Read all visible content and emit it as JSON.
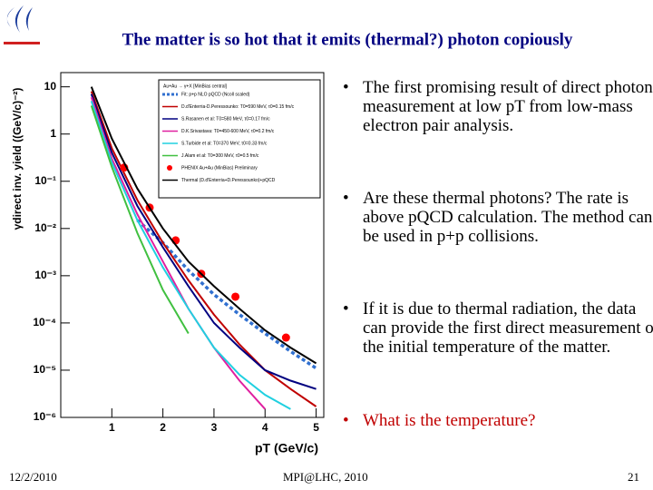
{
  "header": {
    "title": "The matter is so hot that it emits (thermal?) photon copiously"
  },
  "chart_data": {
    "type": "line",
    "log_y": true,
    "x_label": "pT (GeV/c)",
    "y_label": "γdirect inv. yield ((GeV/c)⁻²)",
    "xlim": [
      0,
      5.15
    ],
    "xticks": [
      1,
      2,
      3,
      4,
      5
    ],
    "ylim": [
      1e-06,
      20
    ],
    "yticks": [
      10,
      1,
      {
        "value": 0.1,
        "label": "10⁻¹"
      },
      {
        "value": 0.01,
        "label": "10⁻²"
      },
      {
        "value": 0.001,
        "label": "10⁻³"
      },
      {
        "value": 0.0001,
        "label": "10⁻⁴"
      },
      {
        "value": 1e-05,
        "label": "10⁻⁵"
      },
      {
        "value": 1e-06,
        "label": "10⁻⁶"
      }
    ],
    "legend_title": "Au+Au → γ+X [MinBias central]",
    "x": [
      0.6,
      1,
      1.5,
      2,
      2.5,
      3,
      3.5,
      4,
      4.5,
      5
    ],
    "series": [
      {
        "name": "Fit: p+p NLO pQCD (Ncoll scaled)",
        "color": "#3070d0",
        "dash": true,
        "values": [
          null,
          null,
          0.015,
          0.005,
          0.0013,
          0.0004,
          0.00015,
          6e-05,
          2.5e-05,
          1.1e-05
        ]
      },
      {
        "name": "D.d'Enterria-D.Peressounko: T0=590 MeV, τ0=0.15 fm/c",
        "color": "#c00000",
        "values": [
          8,
          0.5,
          0.04,
          0.005,
          0.0008,
          0.00015,
          3.5e-05,
          1e-05,
          4e-06,
          1.7e-06
        ]
      },
      {
        "name": "S.Rasanen et al: T0=580 MeV, τ0=0.17 fm/c",
        "color": "#000080",
        "values": [
          7,
          0.4,
          0.03,
          0.004,
          0.0006,
          0.0001,
          3e-05,
          1e-05,
          6e-06,
          4e-06
        ]
      },
      {
        "name": "D.K.Srivastava: T0=450-600 MeV, τ0=0.2 fm/c",
        "color": "#e020a0",
        "values": [
          6,
          0.3,
          0.02,
          0.002,
          0.0002,
          3e-05,
          6e-06,
          1.5e-06,
          null,
          null
        ]
      },
      {
        "name": "S.Turbide et al: T0=370 MeV, τ0=0.33 fm/c",
        "color": "#20d0e0",
        "values": [
          5,
          0.25,
          0.015,
          0.0015,
          0.0002,
          3e-05,
          8e-06,
          3e-06,
          1.5e-06,
          null
        ]
      },
      {
        "name": "J.Alam et al: T0=300 MeV, τ0=0.5 fm/c",
        "color": "#40c040",
        "values": [
          4,
          0.2,
          0.008,
          0.0005,
          6e-05,
          null,
          null,
          null,
          null,
          null
        ]
      },
      {
        "name": "PHENIX Au+Au (MinBias) Preliminary",
        "color": "#ff0000",
        "marker": true,
        "x": [
          1.24,
          1.74,
          2.25,
          2.75,
          3.42,
          4.41
        ],
        "values": [
          0.195,
          0.0277,
          0.0056,
          0.0011,
          0.00036,
          4.9e-05
        ]
      },
      {
        "name": "Thermal (D.d'Enterria+D.Peressounko)+pQCD",
        "color": "#000000",
        "values": [
          10,
          0.8,
          0.07,
          0.01,
          0.002,
          0.0006,
          0.0002,
          7e-05,
          3e-05,
          1.4e-05
        ]
      }
    ]
  },
  "bullets": [
    {
      "text": "The first promising result of direct photon measurement at low pT from low-mass electron pair analysis.",
      "color": "#000000"
    },
    {
      "text": "Are these thermal photons? The rate is above pQCD calculation. The method can be used in p+p collisions.",
      "color": "#000000"
    },
    {
      "text": "If it is due to thermal radiation, the data can provide the first direct measurement of the initial temperature of the matter.",
      "color": "#000000"
    },
    {
      "text": "What is the temperature?",
      "color": "#c00000"
    }
  ],
  "footer": {
    "date": "12/2/2010",
    "event": "MPI@LHC, 2010",
    "page": "21"
  }
}
